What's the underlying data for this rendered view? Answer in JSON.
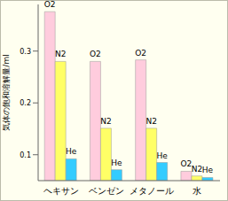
{
  "chart_data": {
    "type": "bar",
    "y_label": "気体の飽和溶解量/ml",
    "categories": [
      "ヘキサン",
      "ベンゼン",
      "メタノール",
      "水"
    ],
    "series": [
      {
        "name": "O2",
        "color": "#ffccdd",
        "values": [
          0.376,
          0.28,
          0.283,
          0.068
        ]
      },
      {
        "name": "N2",
        "color": "#ffff66",
        "values": [
          0.28,
          0.151,
          0.151,
          0.059
        ]
      },
      {
        "name": "He",
        "color": "#33ccff",
        "values": [
          0.092,
          0.071,
          0.085,
          0.056
        ]
      }
    ],
    "ylim": [
      0.05,
      0.39
    ],
    "yticks": [
      0.1,
      0.2,
      0.3
    ],
    "grid": false
  }
}
